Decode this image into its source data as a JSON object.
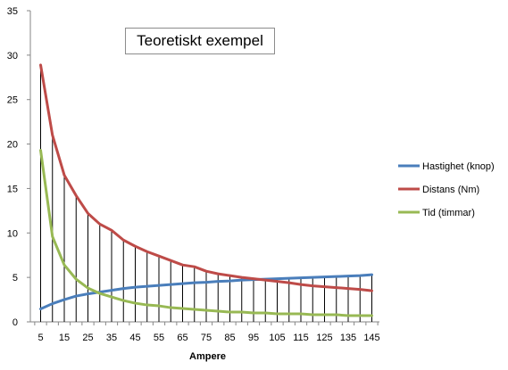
{
  "chart_data": {
    "type": "line",
    "title": "Teoretiskt exempel",
    "xlabel": "Ampere",
    "ylabel": "",
    "ylim": [
      0,
      35
    ],
    "yticks": [
      0,
      5,
      10,
      15,
      20,
      25,
      30,
      35
    ],
    "x": [
      5,
      10,
      15,
      20,
      25,
      30,
      35,
      40,
      45,
      50,
      55,
      60,
      65,
      70,
      75,
      80,
      85,
      90,
      95,
      100,
      105,
      110,
      115,
      120,
      125,
      130,
      135,
      140,
      145
    ],
    "xtick_labels": [
      "5",
      "15",
      "25",
      "35",
      "45",
      "55",
      "65",
      "75",
      "85",
      "95",
      "105",
      "115",
      "125",
      "135",
      "145"
    ],
    "drop_lines": true,
    "grid": false,
    "legend_position": "right",
    "series": [
      {
        "name": "Hastighet (knop)",
        "color": "#4a7ebb",
        "values": [
          1.45,
          2.05,
          2.5,
          2.9,
          3.15,
          3.35,
          3.55,
          3.75,
          3.9,
          4.0,
          4.1,
          4.2,
          4.3,
          4.4,
          4.45,
          4.55,
          4.6,
          4.7,
          4.75,
          4.8,
          4.85,
          4.9,
          4.95,
          5.0,
          5.05,
          5.1,
          5.15,
          5.2,
          5.3
        ]
      },
      {
        "name": "Distans (Nm)",
        "color": "#be4b48",
        "values": [
          28.9,
          21.0,
          16.5,
          14.2,
          12.2,
          11.0,
          10.3,
          9.2,
          8.5,
          7.9,
          7.4,
          6.9,
          6.4,
          6.2,
          5.7,
          5.4,
          5.2,
          5.0,
          4.85,
          4.7,
          4.55,
          4.4,
          4.2,
          4.05,
          3.95,
          3.85,
          3.75,
          3.65,
          3.5
        ]
      },
      {
        "name": "Tid (timmar)",
        "color": "#98b954",
        "values": [
          19.3,
          9.6,
          6.4,
          4.8,
          3.8,
          3.2,
          2.8,
          2.4,
          2.1,
          1.9,
          1.8,
          1.6,
          1.5,
          1.4,
          1.3,
          1.2,
          1.1,
          1.1,
          1.0,
          1.0,
          0.9,
          0.9,
          0.9,
          0.8,
          0.8,
          0.8,
          0.7,
          0.7,
          0.7
        ]
      }
    ]
  }
}
